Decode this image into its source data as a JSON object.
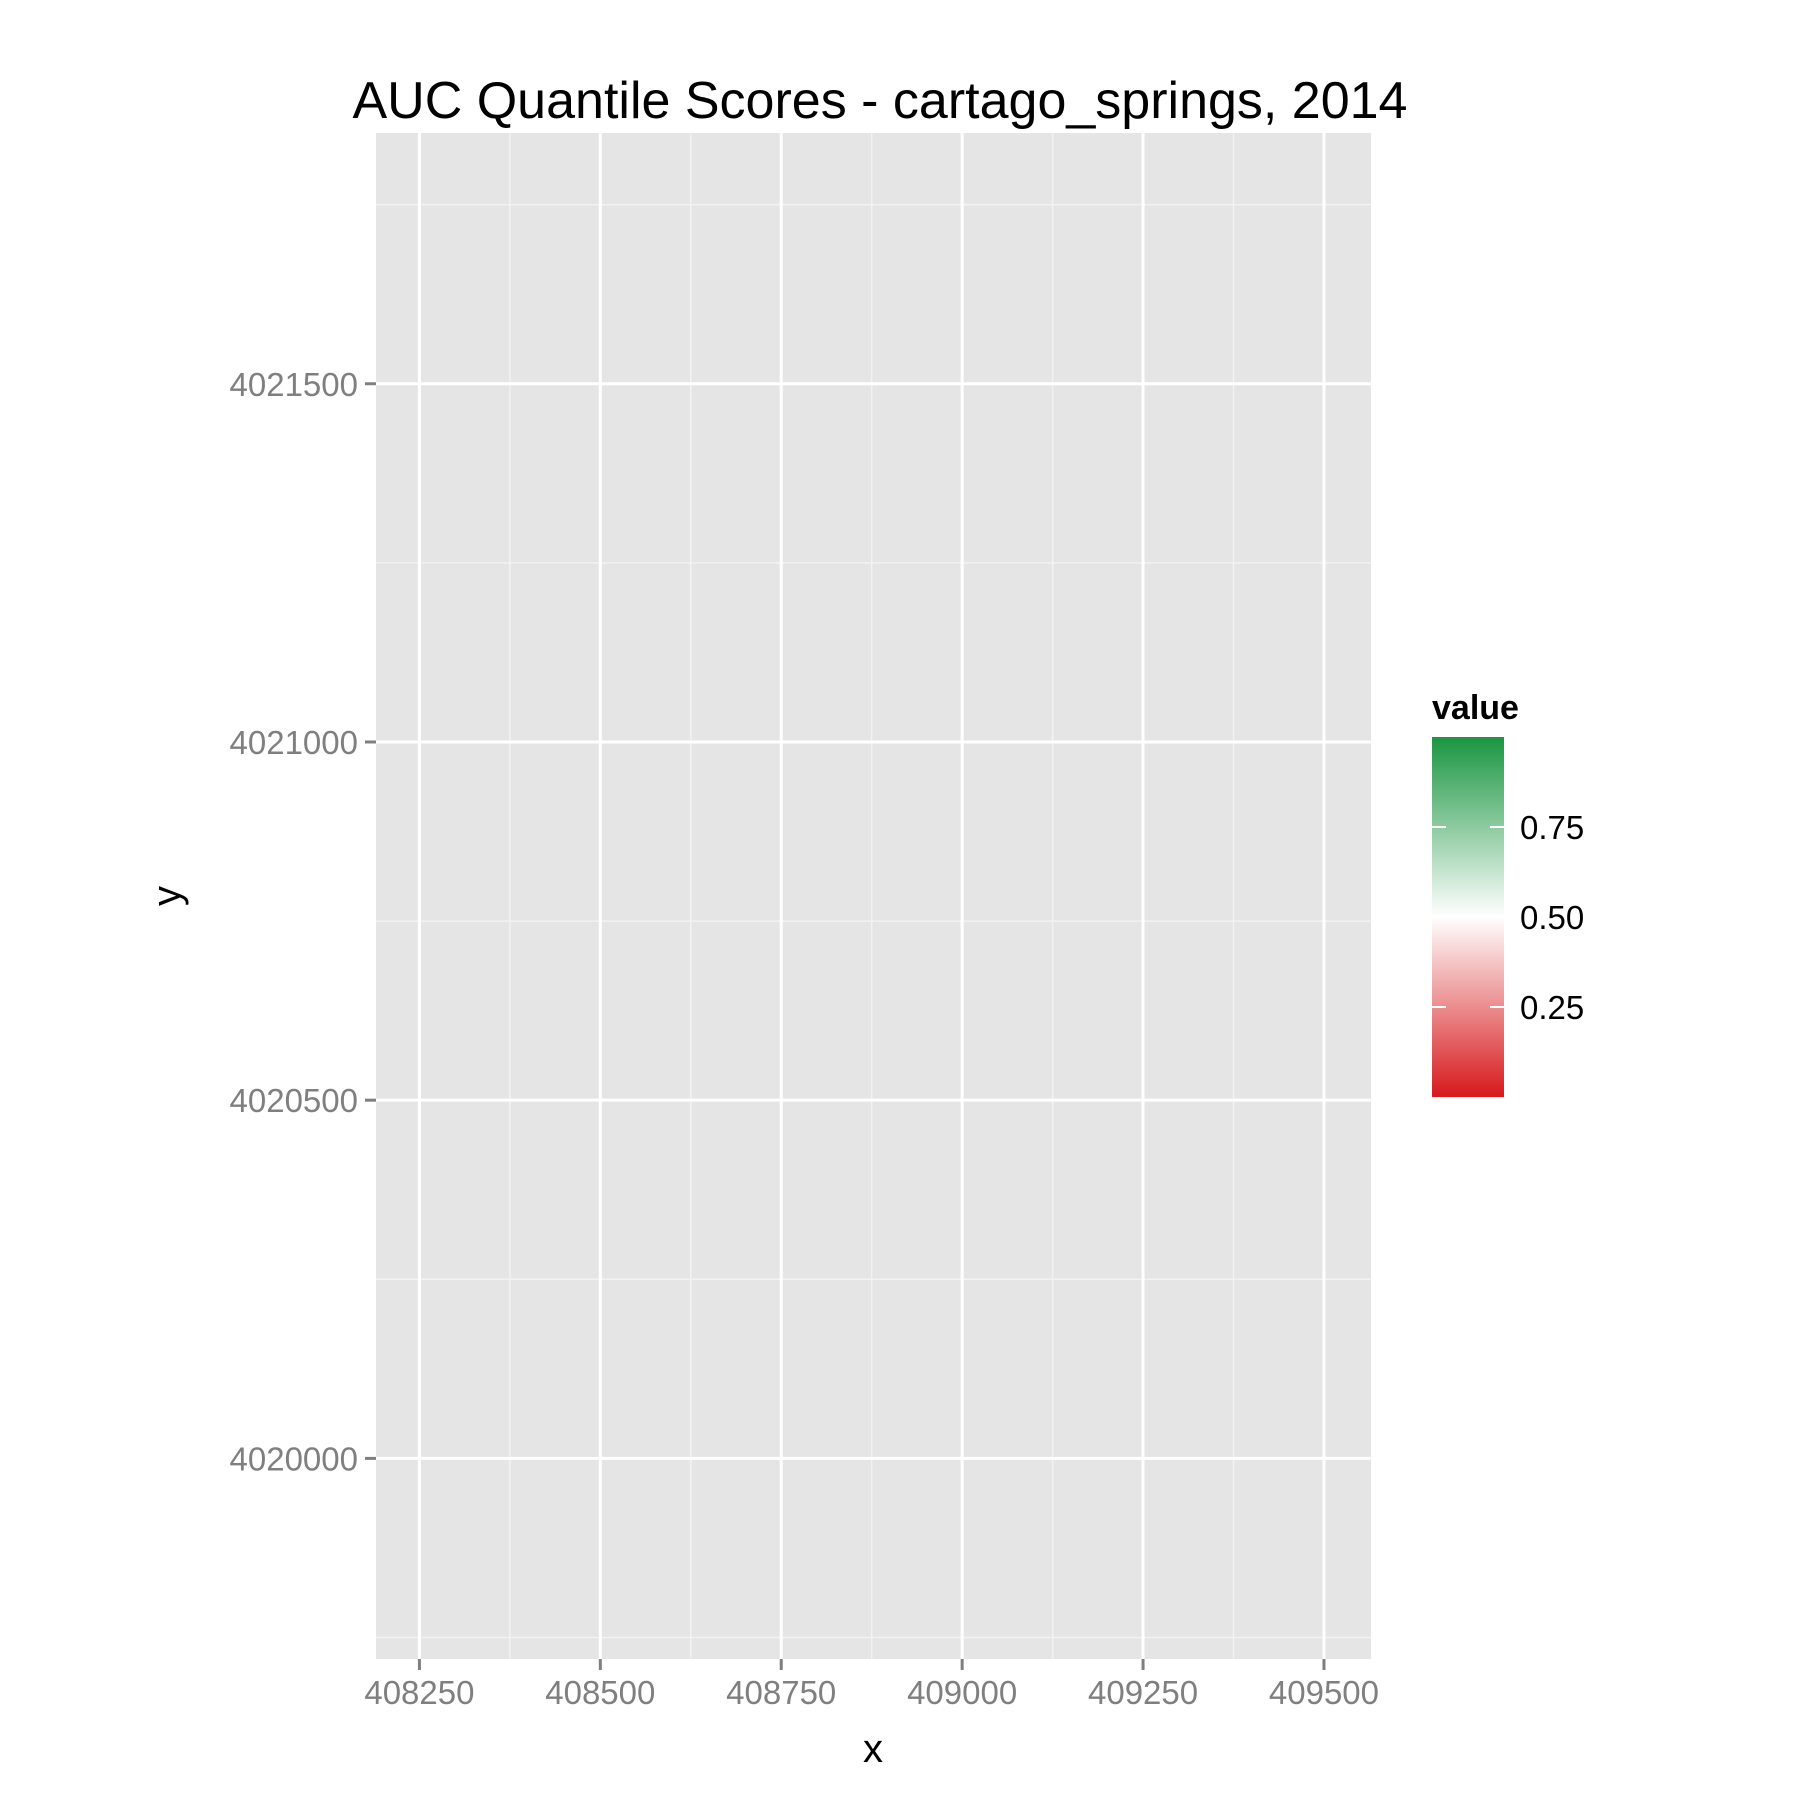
{
  "chart_data": {
    "type": "heatmap",
    "title": "AUC Quantile Scores - cartago_springs, 2014",
    "xlabel": "x",
    "ylabel": "y",
    "xlim": [
      408190,
      409565
    ],
    "ylim": [
      4019720,
      4021850
    ],
    "x_ticks": [
      408250,
      408500,
      408750,
      409000,
      409250,
      409500
    ],
    "y_ticks": [
      4020000,
      4020500,
      4021000,
      4021500
    ],
    "x_tick_labels": [
      "408250",
      "408500",
      "408750",
      "409000",
      "409250",
      "409500"
    ],
    "y_tick_labels": [
      "4020000",
      "4020500",
      "4021000",
      "4021500"
    ],
    "grid": true,
    "panel_background": "#E5E5E5",
    "cell_size": 30,
    "color_scale": {
      "low": "#D7191C",
      "mid": "#FFFFFF",
      "high": "#1A9641",
      "midpoint": 0.5,
      "limits": [
        0,
        1
      ]
    },
    "legend": {
      "title": "value",
      "position": "right",
      "breaks": [
        0.25,
        0.5,
        0.75
      ],
      "labels": [
        "0.25",
        "0.50",
        "0.75"
      ]
    },
    "grid_origin": {
      "x0": 408250,
      "y0": 4019880
    },
    "value_encoding": "Rows listed north to south; each character is one 30 m cell west to east: '.' = no data, 0-9 = value decile (0 = red/low, 9 = green/high).",
    "rows": [
      "..................................................",
      "..................................................",
      "...................................................",
      "...................................................",
      "...................................................",
      "...................................................",
      "...................................................",
      "...................................................",
      "...................................................",
      "...................................................",
      "...................................................",
      "...................................................",
      "...................................................",
      "...................................................",
      "...................................................",
      "..................................................."
    ]
  }
}
